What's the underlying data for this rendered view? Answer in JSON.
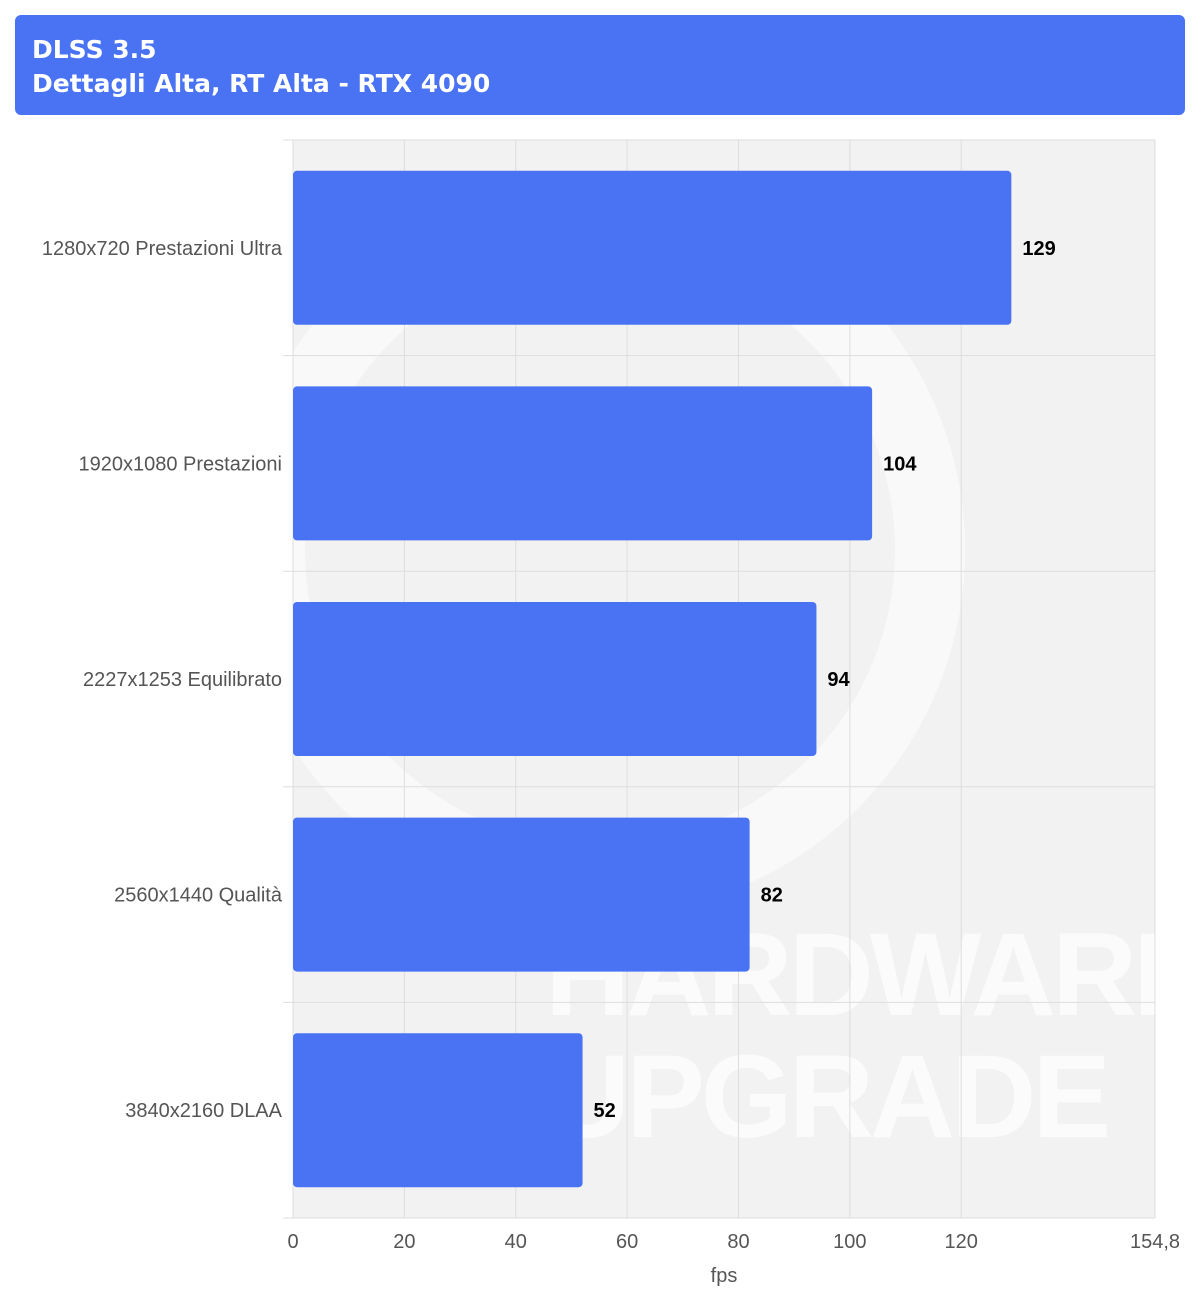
{
  "header": {
    "title": "DLSS 3.5",
    "subtitle": "Dettagli Alta, RT Alta - RTX 4090"
  },
  "colors": {
    "bar": "#4a73f4",
    "header_bg": "#4a73f4",
    "grid": "#dddddd",
    "plot_bg": "#f2f2f2"
  },
  "watermark": [
    "HARDWARE",
    "UPGRADE"
  ],
  "chart_data": {
    "type": "bar",
    "orientation": "horizontal",
    "categories": [
      "1280x720 Prestazioni Ultra",
      "1920x1080 Prestazioni",
      "2227x1253 Equilibrato",
      "2560x1440 Qualità",
      "3840x2160 DLAA"
    ],
    "values": [
      129,
      104,
      94,
      82,
      52
    ],
    "xlabel": "fps",
    "xlim": [
      0,
      154.8
    ],
    "xticks": [
      0,
      20,
      40,
      60,
      80,
      100,
      120,
      154.8
    ],
    "xtick_labels": [
      "0",
      "20",
      "40",
      "60",
      "80",
      "100",
      "120",
      "154,8"
    ],
    "grid": true,
    "data_labels": true
  }
}
